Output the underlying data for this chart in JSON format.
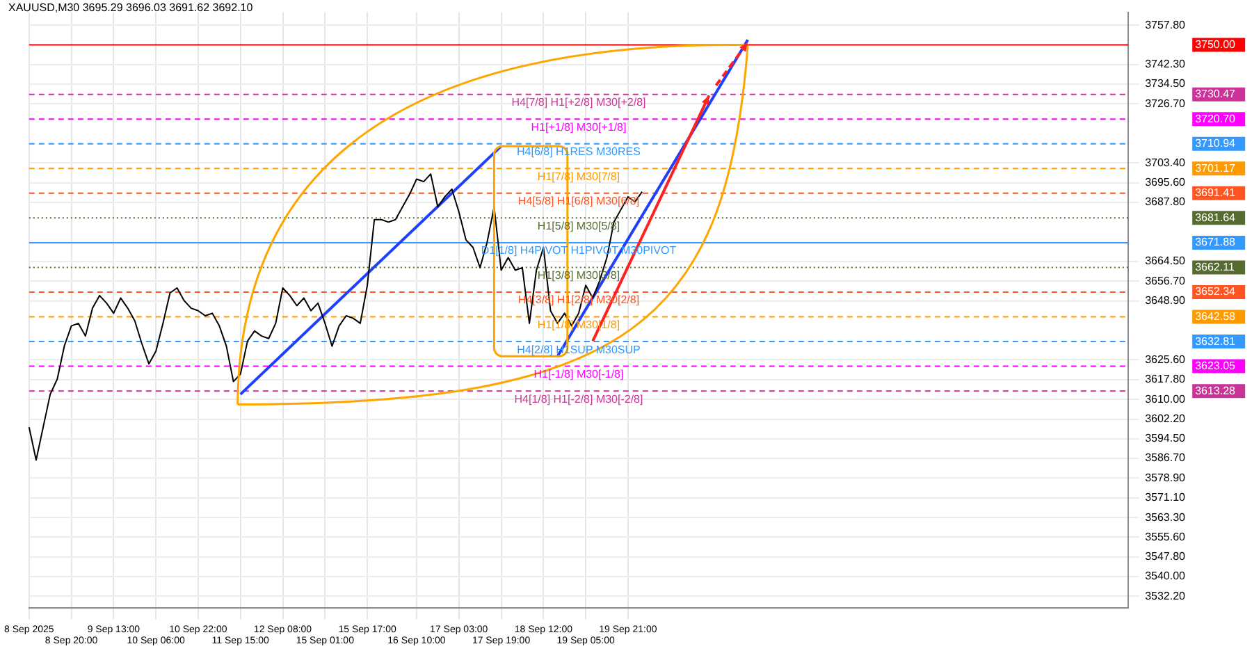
{
  "chart_data": {
    "type": "line",
    "title": "XAUUSD,M30  3695.29 3696.03 3691.62 3692.10",
    "categories": [
      "8 Sep 2025",
      null,
      null,
      null,
      null,
      null,
      "8 Sep 20:00",
      null,
      null,
      null,
      null,
      null,
      "9 Sep 13:00",
      null,
      null,
      null,
      null,
      null,
      "10 Sep 06:00",
      null,
      null,
      null,
      null,
      null,
      "10 Sep 22:00",
      null,
      null,
      null,
      null,
      null,
      "11 Sep 15:00",
      null,
      null,
      null,
      null,
      null,
      "12 Sep 08:00",
      null,
      null,
      null,
      null,
      null,
      "15 Sep 01:00",
      null,
      null,
      null,
      null,
      null,
      "15 Sep 17:00",
      null,
      null,
      null,
      null,
      null,
      null,
      "16 Sep 10:00",
      null,
      null,
      null,
      null,
      null,
      "17 Sep 03:00",
      null,
      null,
      null,
      null,
      null,
      "17 Sep 19:00",
      null,
      null,
      null,
      null,
      null,
      "18 Sep 12:00",
      null,
      null,
      null,
      null,
      null,
      "19 Sep 05:00",
      null,
      null,
      null,
      null,
      null,
      "19 Sep 21:00",
      null,
      null,
      null,
      null,
      null,
      null,
      null,
      null,
      null,
      null,
      null,
      null,
      null,
      null,
      null,
      null,
      null,
      null,
      null,
      null,
      null,
      null,
      null,
      null,
      null,
      null,
      null,
      null,
      null,
      null,
      null,
      null,
      null,
      null,
      null,
      null,
      null,
      null,
      null,
      null,
      null,
      null,
      null,
      null,
      null,
      null,
      null,
      null,
      null,
      null,
      null,
      null,
      null,
      null,
      null,
      null,
      null,
      null,
      null,
      null,
      null,
      null,
      null,
      null,
      null,
      null,
      null,
      null,
      null,
      null,
      null
    ],
    "series": [
      {
        "color": "#000000",
        "values": [
          3599,
          3586,
          3599,
          3612,
          3618,
          3631,
          3639,
          3640,
          3635,
          3646,
          3651,
          3648,
          3644,
          3650,
          3646,
          3641,
          3632,
          3624,
          3629,
          3640,
          3652,
          3654,
          3649,
          3646,
          3645,
          3643,
          3644,
          3639,
          3631,
          3617,
          3620,
          3633,
          3637,
          3635,
          3634,
          3640,
          3654,
          3651,
          3647,
          3650,
          3645,
          3648,
          3640,
          3631,
          3639,
          3643,
          3642,
          3640,
          3655,
          3681,
          3681,
          3680,
          3681,
          3686,
          3691,
          3697,
          3696,
          3699,
          3686,
          3690,
          3693,
          3684,
          3673,
          3670,
          3662,
          3672,
          3686,
          3661,
          3666,
          3661,
          3662,
          3640,
          3661,
          3670,
          3645,
          3640,
          3644,
          3639,
          3644,
          3655,
          3650,
          3657,
          3666,
          3680,
          3685,
          3690,
          3688,
          3692,
          null,
          null,
          null,
          null,
          null,
          null,
          null,
          null,
          null,
          null,
          null,
          null,
          null,
          null,
          null,
          null,
          null,
          null,
          null,
          null,
          null,
          null,
          null,
          null,
          null,
          null,
          null,
          null,
          null,
          null,
          null,
          null,
          null,
          null,
          null,
          null,
          null,
          null,
          null,
          null,
          null,
          null,
          null,
          null,
          null,
          null,
          null,
          null,
          null,
          null,
          null,
          null,
          null,
          null,
          null,
          null,
          null,
          null,
          null,
          null,
          null,
          null,
          null,
          null,
          null,
          null,
          null,
          null,
          null
        ]
      },
      {
        "color": "#1f3fff",
        "values": [
          null,
          null,
          null,
          null,
          null,
          null,
          null,
          null,
          null,
          null,
          null,
          null,
          null,
          null,
          null,
          null,
          null,
          null,
          null,
          null,
          null,
          null,
          null,
          null,
          null,
          null,
          null,
          null,
          null,
          null,
          3612,
          null,
          null,
          null,
          null,
          null,
          null,
          null,
          null,
          null,
          null,
          null,
          null,
          null,
          null,
          null,
          null,
          null,
          null,
          null,
          null,
          null,
          null,
          null,
          null,
          null,
          null,
          null,
          null,
          null,
          null,
          null,
          null,
          null,
          null,
          null,
          null,
          3710,
          null,
          null,
          null,
          null,
          null,
          null,
          null,
          null,
          null,
          null,
          null,
          null,
          null,
          null,
          null,
          null,
          null,
          null,
          null,
          null,
          null,
          null,
          null,
          null,
          null,
          null,
          null,
          null,
          null,
          null,
          null,
          null,
          null,
          null,
          null,
          null,
          null,
          null,
          null,
          null,
          null,
          null,
          null,
          null,
          null,
          null,
          null,
          null,
          null,
          null,
          null,
          null,
          null,
          null,
          null,
          null,
          null,
          null,
          null,
          null,
          null,
          null,
          null,
          null,
          null,
          null,
          null,
          null,
          null,
          null,
          null,
          null,
          null,
          null,
          null,
          null,
          null,
          null,
          null,
          null,
          null,
          null,
          null,
          null,
          null,
          null,
          null,
          null,
          null
        ]
      },
      {
        "color": "#1f3fff",
        "values": [
          null,
          null,
          null,
          null,
          null,
          null,
          null,
          null,
          null,
          null,
          null,
          null,
          null,
          null,
          null,
          null,
          null,
          null,
          null,
          null,
          null,
          null,
          null,
          null,
          null,
          null,
          null,
          null,
          null,
          null,
          null,
          null,
          null,
          null,
          null,
          null,
          null,
          null,
          null,
          null,
          null,
          null,
          null,
          null,
          null,
          null,
          null,
          null,
          null,
          null,
          null,
          null,
          null,
          null,
          null,
          null,
          null,
          null,
          null,
          null,
          null,
          null,
          null,
          null,
          null,
          null,
          null,
          null,
          null,
          null,
          null,
          null,
          null,
          null,
          null,
          3627,
          null,
          null,
          null,
          null,
          null,
          null,
          null,
          null,
          null,
          null,
          null,
          null,
          null,
          null,
          null,
          null,
          null,
          null,
          null,
          null,
          null,
          null,
          null,
          null,
          null,
          null,
          3752,
          null,
          null,
          null,
          null,
          null,
          null,
          null,
          null,
          null,
          null,
          null,
          null,
          null,
          null,
          null,
          null,
          null,
          null,
          null,
          null,
          null,
          null,
          null,
          null,
          null,
          null,
          null,
          null,
          null,
          null,
          null,
          null,
          null,
          null,
          null,
          null,
          null,
          null,
          null,
          null,
          null,
          null,
          null,
          null,
          null,
          null,
          null,
          null,
          null,
          null,
          null,
          null,
          null,
          null
        ]
      }
    ],
    "ylim": [
      3527.5,
      3762.9
    ],
    "yticks": [
      {
        "value": 3757.8,
        "label": "3757.80"
      },
      {
        "value": 3742.3,
        "label": "3742.30"
      },
      {
        "value": 3734.5,
        "label": "3734.50"
      },
      {
        "value": 3726.7,
        "label": "3726.70"
      },
      {
        "value": 3703.4,
        "label": "3703.40"
      },
      {
        "value": 3695.6,
        "label": "3695.60"
      },
      {
        "value": 3687.8,
        "label": "3687.80"
      },
      {
        "value": 3664.5,
        "label": "3664.50"
      },
      {
        "value": 3656.7,
        "label": "3656.70"
      },
      {
        "value": 3648.9,
        "label": "3648.90"
      },
      {
        "value": 3625.6,
        "label": "3625.60"
      },
      {
        "value": 3617.8,
        "label": "3617.80"
      },
      {
        "value": 3610.0,
        "label": "3610.00"
      },
      {
        "value": 3602.2,
        "label": "3602.20"
      },
      {
        "value": 3594.5,
        "label": "3594.50"
      },
      {
        "value": 3586.7,
        "label": "3586.70"
      },
      {
        "value": 3578.9,
        "label": "3578.90"
      },
      {
        "value": 3571.1,
        "label": "3571.10"
      },
      {
        "value": 3563.3,
        "label": "3563.30"
      },
      {
        "value": 3555.6,
        "label": "3555.60"
      },
      {
        "value": 3547.8,
        "label": "3547.80"
      },
      {
        "value": 3540.0,
        "label": "3540.00"
      },
      {
        "value": 3532.2,
        "label": "3532.20"
      }
    ],
    "ref_lines": [
      {
        "axis": "y",
        "value": 3750.0,
        "label": null,
        "color": "#ff0000",
        "line_style": "solid"
      },
      {
        "axis": "y",
        "value": 3730.47,
        "label": "H4[7/8] H1[+2/8] M30[+2/8]",
        "color": "#cc3399",
        "line_style": "dashed"
      },
      {
        "axis": "y",
        "value": 3720.7,
        "label": "H1[+1/8] M30[+1/8]",
        "color": "#ff00ff",
        "line_style": "dashed"
      },
      {
        "axis": "y",
        "value": 3710.94,
        "label": "H4[6/8] H1RES M30RES",
        "color": "#3399ff",
        "line_style": "dashed"
      },
      {
        "axis": "y",
        "value": 3701.17,
        "label": "H1[7/8] M30[7/8]",
        "color": "#ff9900",
        "line_style": "dashed"
      },
      {
        "axis": "y",
        "value": 3691.41,
        "label": "H4[5/8] H1[6/8] M30[6/8]",
        "color": "#ff5522",
        "line_style": "dashed"
      },
      {
        "axis": "y",
        "value": 3681.64,
        "label": "H1[5/8] M30[5/8]",
        "color": "#556b2f",
        "line_style": "dotted"
      },
      {
        "axis": "y",
        "value": 3671.88,
        "label": "D1[1/8] H4PIVOT H1PIVOT M30PIVOT",
        "color": "#3399ff",
        "line_style": "solid"
      },
      {
        "axis": "y",
        "value": 3662.11,
        "label": "H1[3/8] M30[3/8]",
        "color": "#556b2f",
        "line_style": "dotted"
      },
      {
        "axis": "y",
        "value": 3652.34,
        "label": "H4[3/8] H1[2/8] M30[2/8]",
        "color": "#ff5522",
        "line_style": "dashed"
      },
      {
        "axis": "y",
        "value": 3642.58,
        "label": "H1[1/8] M30[1/8]",
        "color": "#ff9900",
        "line_style": "dashed"
      },
      {
        "axis": "y",
        "value": 3632.81,
        "label": "H4[2/8] H1SUP M30SUP",
        "color": "#3399ff",
        "line_style": "dashed"
      },
      {
        "axis": "y",
        "value": 3623.05,
        "label": "H1[-1/8] M30[-1/8]",
        "color": "#ff00ff",
        "line_style": "dashed"
      },
      {
        "axis": "y",
        "value": 3613.28,
        "label": "H4[1/8] H1[-2/8] M30[-2/8]",
        "color": "#cc3399",
        "line_style": "dashed"
      }
    ],
    "annotations": [
      "3750.00",
      "3730.47",
      "3720.70",
      "3710.94",
      "3701.17",
      "3691.41",
      "3681.64",
      "3671.88",
      "3662.11",
      "3652.34",
      "3642.58",
      "3632.81",
      "3623.05",
      "3613.28"
    ],
    "grid": true,
    "legend": false,
    "marker": "none",
    "line_style": "solid"
  }
}
